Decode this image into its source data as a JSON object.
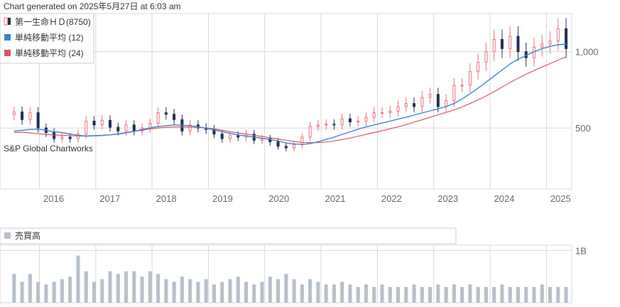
{
  "header": {
    "generated_text": "Chart generated on 2025年5月27日 at 6:03 am"
  },
  "watermark": "S&P Global Chartworks",
  "colors": {
    "up": "#e8707e",
    "down": "#1f2f52",
    "sma12": "#3a86c8",
    "sma24": "#d9546a",
    "volume": "#b7c0ca",
    "grid": "#d9d9d9",
    "axis_text": "#666666"
  },
  "chart_data": [
    {
      "type": "candlestick",
      "legend": [
        {
          "label": "第一生命ＨＤ(8750)",
          "icon": "candle-icon"
        },
        {
          "label": "単純移動平均 (12)",
          "color": "#3a86c8",
          "icon": "swatch-icon"
        },
        {
          "label": "単純移動平均 (24)",
          "color": "#d9546a",
          "icon": "swatch-icon"
        }
      ],
      "x_ticks": [
        "2016",
        "2017",
        "2018",
        "2019",
        "2020",
        "2021",
        "2022",
        "2023",
        "2024",
        "2025"
      ],
      "y_ticks": [
        {
          "value": 500,
          "label": "500"
        },
        {
          "value": 1000,
          "label": "1,000"
        }
      ],
      "ylim": [
        100,
        1250
      ],
      "xlim": [
        2015.3,
        2025.45
      ],
      "grid": true,
      "legend_position": "top-left",
      "close": [
        605,
        555,
        600,
        500,
        470,
        430,
        440,
        430,
        460,
        545,
        520,
        550,
        505,
        480,
        520,
        480,
        500,
        530,
        600,
        590,
        555,
        480,
        520,
        500,
        490,
        460,
        430,
        450,
        440,
        460,
        420,
        430,
        410,
        380,
        370,
        390,
        440,
        510,
        520,
        525,
        520,
        560,
        540,
        545,
        570,
        600,
        600,
        610,
        640,
        660,
        640,
        700,
        720,
        640,
        680,
        780,
        780,
        870,
        930,
        1000,
        1080,
        1020,
        1100,
        1000,
        960,
        1030,
        1050,
        1070,
        1150,
        1020
      ],
      "sma12": [
        480,
        485,
        490,
        492,
        485,
        475,
        470,
        460,
        452,
        448,
        450,
        452,
        455,
        460,
        468,
        478,
        490,
        500,
        510,
        515,
        520,
        518,
        515,
        508,
        498,
        488,
        476,
        465,
        455,
        448,
        440,
        432,
        425,
        415,
        402,
        395,
        392,
        398,
        410,
        425,
        440,
        458,
        475,
        492,
        507,
        520,
        532,
        545,
        558,
        570,
        584,
        598,
        612,
        625,
        640,
        660,
        690,
        725,
        760,
        800,
        840,
        880,
        920,
        950,
        975,
        1000,
        1020,
        1035,
        1045,
        1050
      ],
      "sma24": [
        470,
        472,
        468,
        462,
        458,
        454,
        452,
        450,
        448,
        446,
        448,
        450,
        455,
        462,
        470,
        478,
        486,
        494,
        500,
        504,
        506,
        507,
        506,
        504,
        500,
        494,
        486,
        476,
        468,
        460,
        452,
        444,
        436,
        428,
        420,
        412,
        406,
        404,
        404,
        408,
        415,
        424,
        434,
        446,
        458,
        470,
        482,
        495,
        508,
        522,
        538,
        554,
        570,
        586,
        602,
        618,
        638,
        660,
        684,
        710,
        738,
        768,
        798,
        826,
        852,
        876,
        900,
        922,
        945,
        965
      ],
      "volume": [
        0.55,
        0.4,
        0.55,
        0.4,
        0.35,
        0.4,
        0.45,
        0.5,
        0.9,
        0.6,
        0.4,
        0.45,
        0.6,
        0.55,
        0.6,
        0.6,
        0.5,
        0.6,
        0.55,
        0.45,
        0.4,
        0.5,
        0.45,
        0.4,
        0.45,
        0.35,
        0.4,
        0.45,
        0.5,
        0.4,
        0.35,
        0.4,
        0.5,
        0.45,
        0.55,
        0.45,
        0.35,
        0.45,
        0.4,
        0.35,
        0.35,
        0.4,
        0.35,
        0.3,
        0.35,
        0.3,
        0.35,
        0.3,
        0.3,
        0.3,
        0.35,
        0.3,
        0.3,
        0.35,
        0.3,
        0.35,
        0.3,
        0.35,
        0.3,
        0.3,
        0.3,
        0.35,
        0.3,
        0.3,
        0.3,
        0.3,
        0.35,
        0.3,
        0.3,
        0.3
      ],
      "volume_legend": "売買高",
      "volume_ticks": [
        {
          "value": 1,
          "label": "1B"
        }
      ]
    }
  ]
}
